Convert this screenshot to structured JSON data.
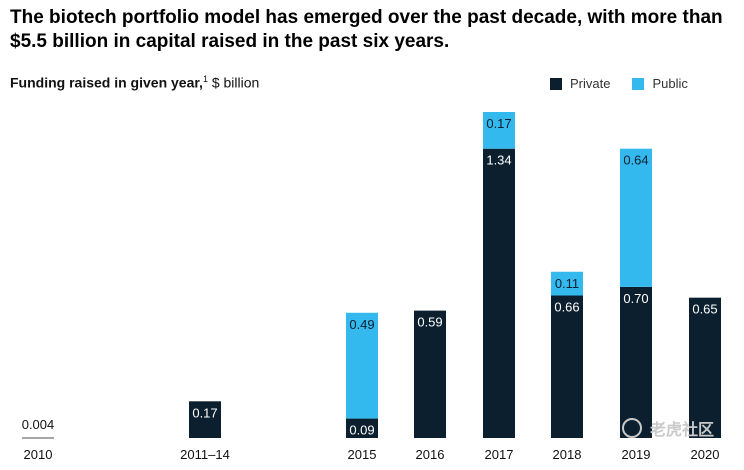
{
  "headline": "The biotech portfolio model has emerged over the past decade, with more than $5.5 billion in capital raised in the past six years.",
  "subtitle": {
    "bold": "Funding raised in given year,",
    "footnote": "1",
    "unit": " $ billion"
  },
  "colors": {
    "private": "#0b1f2e",
    "public": "#34b9ee",
    "axis_text": "#111111"
  },
  "watermark": "老虎社区",
  "chart_data": {
    "type": "bar",
    "stacked": true,
    "categories": [
      "2010",
      "2011–14",
      "2015",
      "2016",
      "2017",
      "2018",
      "2019",
      "2020"
    ],
    "series": [
      {
        "name": "Private",
        "values": [
          0.004,
          0.17,
          0.09,
          0.59,
          1.34,
          0.66,
          0.7,
          0.65
        ],
        "labels": [
          "0.004",
          "0.17",
          "0.09",
          "0.59",
          "1.34",
          "0.66",
          "0.70",
          "0.65"
        ]
      },
      {
        "name": "Public",
        "values": [
          0,
          0,
          0.49,
          0,
          0.17,
          0.11,
          0.64,
          0
        ],
        "labels": [
          "",
          "",
          "0.49",
          "",
          "0.17",
          "0.11",
          "0.64",
          ""
        ]
      }
    ],
    "ylim": [
      0,
      1.51
    ],
    "grid": false,
    "legend_position": "top-right"
  }
}
